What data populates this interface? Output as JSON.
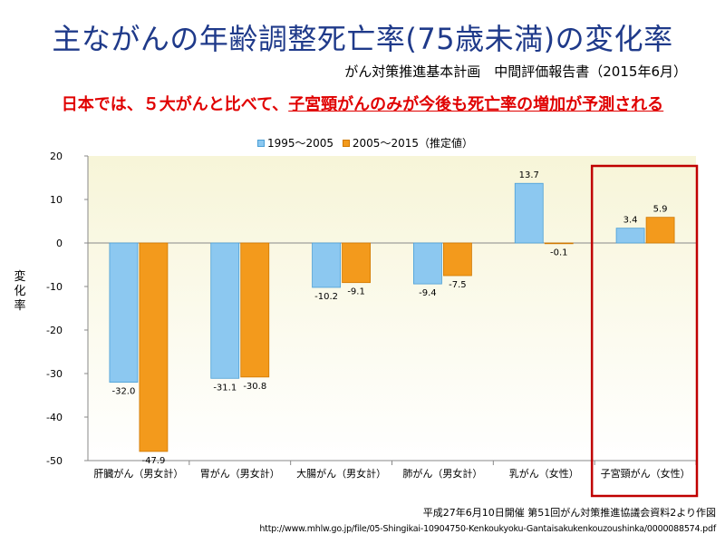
{
  "page": {
    "title": "主ながんの年齢調整死亡率(75歳未満)の変化率",
    "subtitle": "がん対策推進基本計画　中間評価報告書（2015年6月）",
    "headline_prefix": "日本では、５大がんと比べて、",
    "headline_emphasis": "子宮頸がんのみが今後も死亡率の増加が予測される",
    "source_note": "平成27年6月10日開催 第51回がん対策推進協議会資料2より作図",
    "source_url": "http://www.mhlw.go.jp/file/05-Shingikai-10904750-Kenkoukyoku-Gantaisakukenkouzoushinka/0000088574.pdf"
  },
  "chart_data": {
    "type": "bar",
    "categories": [
      "肝臓がん（男女計）",
      "胃がん（男女計）",
      "大腸がん（男女計）",
      "肺がん（男女計）",
      "乳がん（女性）",
      "子宮頸がん（女性）"
    ],
    "series": [
      {
        "name": "1995～2005",
        "values": [
          -32.0,
          -31.1,
          -10.2,
          -9.4,
          13.7,
          3.4
        ],
        "labels": [
          "-32.0",
          "-31.1",
          "-10.2",
          "-9.4",
          "13.7",
          "3.4"
        ],
        "color": "#8cc8f0"
      },
      {
        "name": "2005～2015（推定値）",
        "values": [
          -47.9,
          -30.8,
          -9.1,
          -7.5,
          -0.1,
          5.9
        ],
        "labels": [
          "-47.9",
          "-30.8",
          "-9.1",
          "-7.5",
          "-0.1",
          "5.9"
        ],
        "color": "#f39a1c"
      }
    ],
    "ylabel": "変化率",
    "ylim": [
      -50,
      20
    ],
    "yticks": [
      "-50",
      "-40",
      "-30",
      "-20",
      "-10",
      "0",
      "10",
      "20"
    ],
    "grid": false,
    "legend_position": "top",
    "highlight_category": "子宮頸がん（女性）",
    "highlight_color": "#c00000",
    "plot_background": "#f7f5d8"
  }
}
